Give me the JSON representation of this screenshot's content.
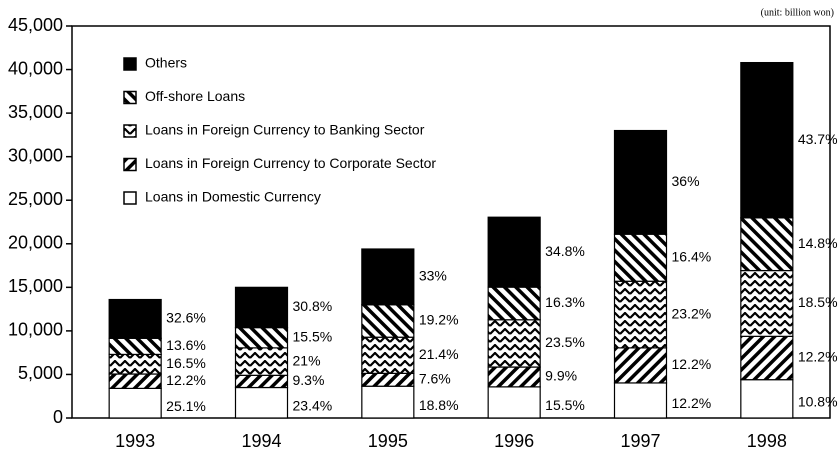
{
  "chart_data": {
    "type": "stacked-bar",
    "annotation": "(unit: billion won)",
    "categories": [
      "1993",
      "1994",
      "1995",
      "1996",
      "1997",
      "1998"
    ],
    "series": [
      {
        "name": "Loans in Domestic Currency",
        "color": "#ffffff",
        "pattern": "solid",
        "values": [
          3400,
          3500,
          3650,
          3575,
          4025,
          4400
        ],
        "labels": [
          "25.1%",
          "23.4%",
          "18.8%",
          "15.5%",
          "12.2%",
          "10.8%"
        ]
      },
      {
        "name": "Loans in Foreign Currency to Corporate Sector",
        "color": "#000000",
        "pattern": "hatch-right",
        "values": [
          1650,
          1400,
          1475,
          2275,
          4025,
          4975
        ],
        "labels": [
          "12.2%",
          "9.3%",
          "7.6%",
          "9.9%",
          "12.2%",
          "12.2%"
        ]
      },
      {
        "name": "Loans in Foreign Currency to Banking Sector",
        "color": "#000000",
        "pattern": "zigzag",
        "values": [
          2250,
          3150,
          4150,
          5425,
          7650,
          7550
        ],
        "labels": [
          "16.5%",
          "21%",
          "21.4%",
          "23.5%",
          "23.2%",
          "18.5%"
        ]
      },
      {
        "name": "Off-shore Loans",
        "color": "#000000",
        "pattern": "hatch-left",
        "values": [
          1850,
          2325,
          3725,
          3750,
          5400,
          6050
        ],
        "labels": [
          "13.6%",
          "15.5%",
          "19.2%",
          "16.3%",
          "16.4%",
          "14.8%"
        ]
      },
      {
        "name": "Others",
        "color": "#000000",
        "pattern": "solid",
        "values": [
          4450,
          4625,
          6400,
          8025,
          11900,
          17825
        ],
        "labels": [
          "32.6%",
          "30.8%",
          "33%",
          "34.8%",
          "36%",
          "43.7%"
        ]
      }
    ],
    "ylim": [
      0,
      45000
    ],
    "yticks": [
      0,
      {
        "value": 5000,
        "label": "5,000"
      },
      {
        "value": 10000,
        "label": "10,000"
      },
      {
        "value": 15000,
        "label": "15,000"
      },
      {
        "value": 20000,
        "label": "20,000"
      },
      {
        "value": 25000,
        "label": "25,000"
      },
      {
        "value": 30000,
        "label": "30,000"
      },
      {
        "value": 35000,
        "label": "35,000"
      },
      {
        "value": 40000,
        "label": "40,000"
      },
      {
        "value": 45000,
        "label": "45,000"
      }
    ],
    "legend": "upper left"
  }
}
